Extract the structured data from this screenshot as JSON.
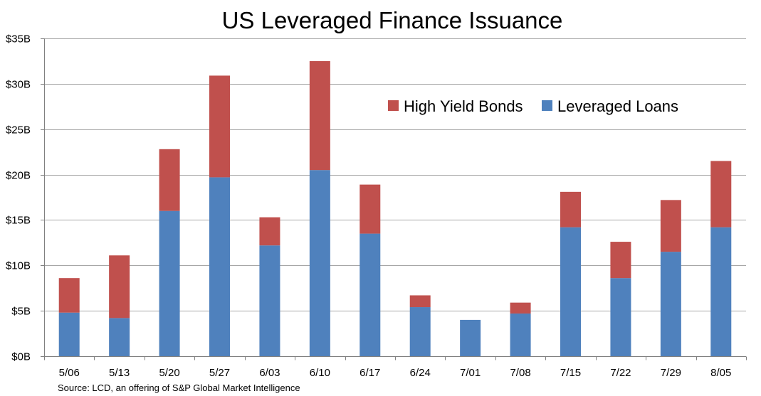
{
  "chart_data": {
    "type": "bar",
    "stacked": true,
    "title": "US Leveraged Finance Issuance",
    "categories": [
      "5/06",
      "5/13",
      "5/20",
      "5/27",
      "6/03",
      "6/10",
      "6/17",
      "6/24",
      "7/01",
      "7/08",
      "7/15",
      "7/22",
      "7/29",
      "8/05"
    ],
    "series": [
      {
        "name": "Leveraged Loans",
        "color": "#4f81bd",
        "values": [
          4.8,
          4.2,
          16.0,
          19.7,
          12.2,
          20.5,
          13.5,
          5.4,
          4.0,
          4.7,
          14.2,
          8.6,
          11.5,
          14.2
        ]
      },
      {
        "name": "High Yield Bonds",
        "color": "#c0504d",
        "values": [
          3.8,
          6.9,
          6.8,
          11.2,
          3.1,
          12.0,
          5.4,
          1.3,
          0.0,
          1.2,
          3.9,
          4.0,
          5.7,
          7.3
        ]
      }
    ],
    "ylim": [
      0,
      35
    ],
    "ytick_values": [
      0,
      5,
      10,
      15,
      20,
      25,
      30,
      35
    ],
    "ytick_labels": [
      "$0B",
      "$5B",
      "$10B",
      "$15B",
      "$20B",
      "$25B",
      "$30B",
      "$35B"
    ],
    "grid": true,
    "legend_position": "top-right",
    "legend_order": [
      "High Yield Bonds",
      "Leveraged Loans"
    ],
    "source": "Source: LCD, an offering of S&P Global Market Intelligence"
  }
}
